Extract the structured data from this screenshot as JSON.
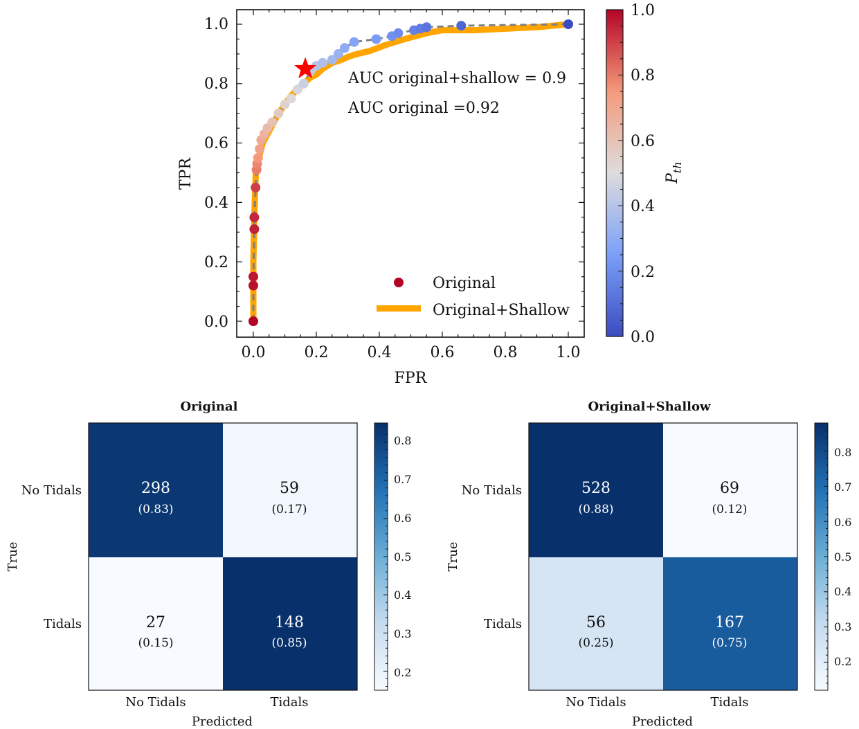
{
  "roc": {
    "xlabel": "FPR",
    "ylabel": "TPR",
    "x_ticks": [
      "0.0",
      "0.2",
      "0.4",
      "0.6",
      "0.8",
      "1.0"
    ],
    "y_ticks": [
      "0.0",
      "0.2",
      "0.4",
      "0.6",
      "0.8",
      "1.0"
    ],
    "annotation_1": "AUC original+shallow = 0.9",
    "annotation_2": "AUC original =0.92",
    "legend_original": "Original",
    "legend_shallow": "Original+Shallow",
    "colorbar_label_main": "P",
    "colorbar_label_sub": "th",
    "colorbar_ticks": [
      "0.0",
      "0.2",
      "0.4",
      "0.6",
      "0.8",
      "1.0"
    ]
  },
  "chart_data": [
    {
      "type": "scatter",
      "title": "",
      "xlabel": "FPR",
      "ylabel": "TPR",
      "xlim": [
        0,
        1
      ],
      "ylim": [
        0,
        1
      ],
      "grid": false,
      "legend_position": "lower-right",
      "colormap": "coolwarm",
      "colorbar_range": [
        0,
        1
      ],
      "series": [
        {
          "name": "Original",
          "style": "gray dashed line with points colored by threshold",
          "points": [
            {
              "x": 0.0,
              "y": 0.0,
              "c": 1.0
            },
            {
              "x": 0.0,
              "y": 0.12,
              "c": 0.98
            },
            {
              "x": 0.0,
              "y": 0.15,
              "c": 0.97
            },
            {
              "x": 0.003,
              "y": 0.31,
              "c": 0.95
            },
            {
              "x": 0.003,
              "y": 0.35,
              "c": 0.94
            },
            {
              "x": 0.007,
              "y": 0.45,
              "c": 0.9
            },
            {
              "x": 0.01,
              "y": 0.51,
              "c": 0.8
            },
            {
              "x": 0.012,
              "y": 0.53,
              "c": 0.78
            },
            {
              "x": 0.015,
              "y": 0.55,
              "c": 0.75
            },
            {
              "x": 0.02,
              "y": 0.58,
              "c": 0.72
            },
            {
              "x": 0.025,
              "y": 0.61,
              "c": 0.69
            },
            {
              "x": 0.035,
              "y": 0.63,
              "c": 0.66
            },
            {
              "x": 0.045,
              "y": 0.65,
              "c": 0.63
            },
            {
              "x": 0.06,
              "y": 0.67,
              "c": 0.6
            },
            {
              "x": 0.08,
              "y": 0.7,
              "c": 0.57
            },
            {
              "x": 0.1,
              "y": 0.73,
              "c": 0.54
            },
            {
              "x": 0.12,
              "y": 0.75,
              "c": 0.51
            },
            {
              "x": 0.14,
              "y": 0.78,
              "c": 0.48
            },
            {
              "x": 0.16,
              "y": 0.8,
              "c": 0.45
            },
            {
              "x": 0.18,
              "y": 0.84,
              "c": 0.42
            },
            {
              "x": 0.2,
              "y": 0.86,
              "c": 0.4
            },
            {
              "x": 0.22,
              "y": 0.87,
              "c": 0.38
            },
            {
              "x": 0.25,
              "y": 0.88,
              "c": 0.35
            },
            {
              "x": 0.27,
              "y": 0.9,
              "c": 0.33
            },
            {
              "x": 0.29,
              "y": 0.92,
              "c": 0.3
            },
            {
              "x": 0.32,
              "y": 0.94,
              "c": 0.27
            },
            {
              "x": 0.39,
              "y": 0.95,
              "c": 0.24
            },
            {
              "x": 0.44,
              "y": 0.96,
              "c": 0.21
            },
            {
              "x": 0.46,
              "y": 0.97,
              "c": 0.19
            },
            {
              "x": 0.51,
              "y": 0.98,
              "c": 0.16
            },
            {
              "x": 0.53,
              "y": 0.985,
              "c": 0.14
            },
            {
              "x": 0.55,
              "y": 0.99,
              "c": 0.12
            },
            {
              "x": 0.66,
              "y": 0.995,
              "c": 0.08
            },
            {
              "x": 1.0,
              "y": 1.0,
              "c": 0.0
            }
          ]
        },
        {
          "name": "Original+Shallow",
          "style": "thick orange line",
          "x": [
            0.0,
            0.0,
            0.003,
            0.006,
            0.008,
            0.012,
            0.02,
            0.03,
            0.04,
            0.05,
            0.06,
            0.08,
            0.1,
            0.12,
            0.14,
            0.16,
            0.18,
            0.2,
            0.22,
            0.25,
            0.28,
            0.3,
            0.33,
            0.37,
            0.42,
            0.48,
            0.55,
            0.6,
            0.7,
            0.8,
            0.9,
            1.0
          ],
          "y": [
            0.0,
            0.2,
            0.35,
            0.45,
            0.5,
            0.53,
            0.56,
            0.6,
            0.62,
            0.64,
            0.66,
            0.7,
            0.73,
            0.76,
            0.78,
            0.8,
            0.82,
            0.83,
            0.85,
            0.87,
            0.88,
            0.89,
            0.9,
            0.91,
            0.93,
            0.95,
            0.97,
            0.98,
            0.98,
            0.985,
            0.99,
            1.0
          ]
        }
      ],
      "optimal_point": {
        "x": 0.165,
        "y": 0.85,
        "marker": "red star"
      },
      "annotations": [
        "AUC original+shallow = 0.9",
        "AUC original =0.92"
      ]
    },
    {
      "type": "heatmap",
      "title": "Original",
      "xlabel": "Predicted",
      "ylabel": "True",
      "x_categories": [
        "No Tidals",
        "Tidals"
      ],
      "y_categories": [
        "No Tidals",
        "Tidals"
      ],
      "counts": [
        [
          298,
          59
        ],
        [
          27,
          148
        ]
      ],
      "fractions": [
        [
          0.83,
          0.17
        ],
        [
          0.15,
          0.85
        ]
      ],
      "colormap": "Blues",
      "colorbar_range": [
        0.15,
        0.85
      ],
      "colorbar_ticks": [
        0.2,
        0.3,
        0.4,
        0.5,
        0.6,
        0.7,
        0.8
      ]
    },
    {
      "type": "heatmap",
      "title": "Original+Shallow",
      "xlabel": "Predicted",
      "ylabel": "True",
      "x_categories": [
        "No Tidals",
        "Tidals"
      ],
      "y_categories": [
        "No Tidals",
        "Tidals"
      ],
      "counts": [
        [
          528,
          69
        ],
        [
          56,
          167
        ]
      ],
      "fractions": [
        [
          0.88,
          0.12
        ],
        [
          0.25,
          0.75
        ]
      ],
      "colormap": "Blues",
      "colorbar_range": [
        0.12,
        0.88
      ],
      "colorbar_ticks": [
        0.2,
        0.3,
        0.4,
        0.5,
        0.6,
        0.7,
        0.8
      ]
    }
  ],
  "cm_left": {
    "title": "Original",
    "xlabel": "Predicted",
    "ylabel": "True",
    "xtick_0": "No Tidals",
    "xtick_1": "Tidals",
    "ytick_0": "No Tidals",
    "ytick_1": "Tidals",
    "cells": [
      {
        "count": "298",
        "frac": "(0.83)"
      },
      {
        "count": "59",
        "frac": "(0.17)"
      },
      {
        "count": "27",
        "frac": "(0.15)"
      },
      {
        "count": "148",
        "frac": "(0.85)"
      }
    ],
    "cb_ticks": [
      "0.2",
      "0.3",
      "0.4",
      "0.5",
      "0.6",
      "0.7",
      "0.8"
    ]
  },
  "cm_right": {
    "title": "Original+Shallow",
    "xlabel": "Predicted",
    "ylabel": "True",
    "xtick_0": "No Tidals",
    "xtick_1": "Tidals",
    "ytick_0": "No Tidals",
    "ytick_1": "Tidals",
    "cells": [
      {
        "count": "528",
        "frac": "(0.88)"
      },
      {
        "count": "69",
        "frac": "(0.12)"
      },
      {
        "count": "56",
        "frac": "(0.25)"
      },
      {
        "count": "167",
        "frac": "(0.75)"
      }
    ],
    "cb_ticks": [
      "0.2",
      "0.3",
      "0.4",
      "0.5",
      "0.6",
      "0.7",
      "0.8"
    ]
  },
  "colors": {
    "shallow_line": "#ffa500",
    "dashed_line": "#808080",
    "star": "#ff0000",
    "blue_dark": "#08306b",
    "blue_light": "#f7fbff"
  }
}
